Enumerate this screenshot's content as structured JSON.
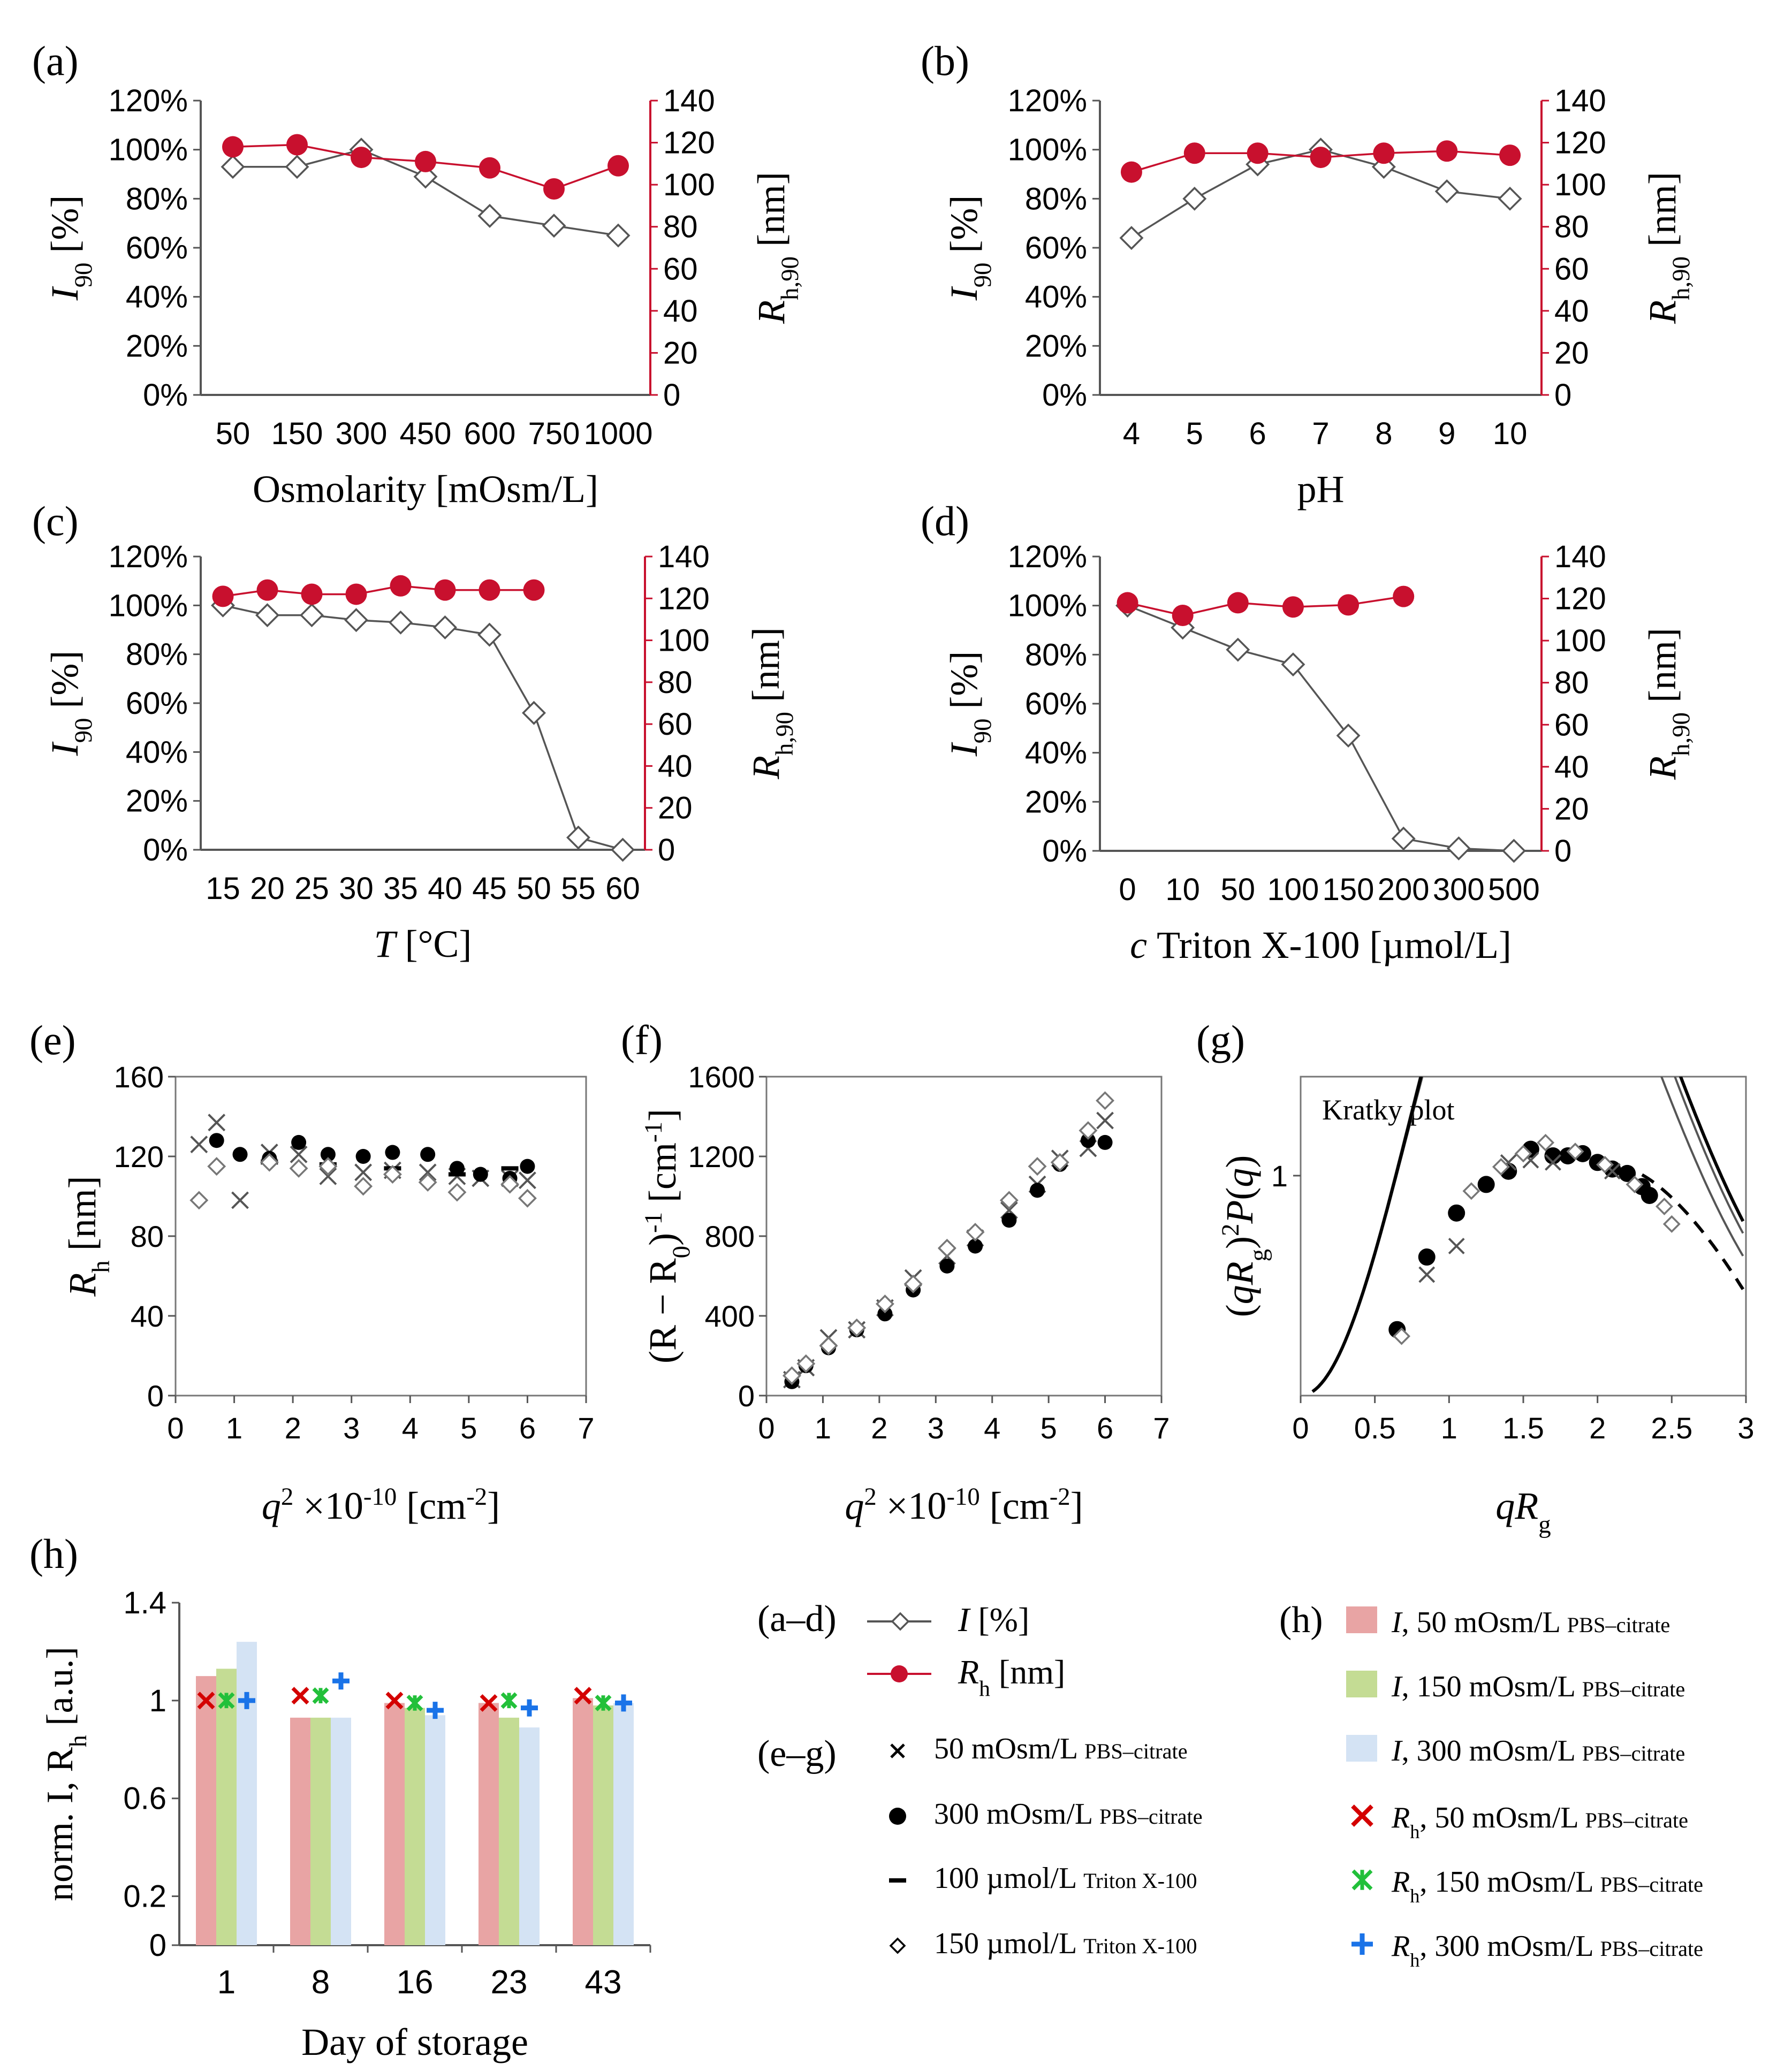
{
  "colors": {
    "red": "#c8102e",
    "marker_open": "#555555",
    "line": "#555555",
    "bar_pink": "#e8a4a4",
    "bar_green": "#c4dc94",
    "bar_blue": "#d4e3f4",
    "cross_red": "#d40000",
    "cross_green": "#22c03a",
    "plus_blue": "#1a73e8"
  },
  "chart_data": [
    {
      "id": "a",
      "panel_label": "(a)",
      "type": "line",
      "xlabel": "Osmolarity [mOsm/L]",
      "categories": [
        "50",
        "150",
        "300",
        "450",
        "600",
        "750",
        "1000"
      ],
      "y_ticks": [
        "0%",
        "20%",
        "40%",
        "60%",
        "80%",
        "100%",
        "120%"
      ],
      "y2_ticks": [
        "0",
        "20",
        "40",
        "60",
        "80",
        "100",
        "120",
        "140"
      ],
      "ylabel": "I",
      "ylabel_sub": "90",
      "ylabel_unit": "[%]",
      "y2label": "R",
      "y2label_sub": "h,90",
      "y2label_unit": "[nm]",
      "ylim": [
        0,
        120
      ],
      "y2lim": [
        0,
        140
      ],
      "series": [
        {
          "name": "I [%]",
          "values": [
            93,
            93,
            100,
            89,
            73,
            69,
            65
          ]
        },
        {
          "name": "Rh [nm]",
          "values": [
            118,
            119,
            113,
            111,
            108,
            98,
            109
          ]
        }
      ]
    },
    {
      "id": "b",
      "panel_label": "(b)",
      "type": "line",
      "xlabel": "pH",
      "categories": [
        "4",
        "5",
        "6",
        "7",
        "8",
        "9",
        "10"
      ],
      "y_ticks": [
        "0%",
        "20%",
        "40%",
        "60%",
        "80%",
        "100%",
        "120%"
      ],
      "y2_ticks": [
        "0",
        "20",
        "40",
        "60",
        "80",
        "100",
        "120",
        "140"
      ],
      "ylabel": "I",
      "ylabel_sub": "90",
      "ylabel_unit": "[%]",
      "y2label": "R",
      "y2label_sub": "h,90",
      "y2label_unit": "[nm]",
      "ylim": [
        0,
        120
      ],
      "y2lim": [
        0,
        140
      ],
      "series": [
        {
          "name": "I [%]",
          "values": [
            64,
            80,
            94,
            100,
            93,
            83,
            80
          ]
        },
        {
          "name": "Rh [nm]",
          "values": [
            106,
            115,
            115,
            113,
            115,
            116,
            114
          ]
        }
      ]
    },
    {
      "id": "c",
      "panel_label": "(c)",
      "type": "line",
      "xlabel": "T",
      "xlabel_unit": "[°C]",
      "categories": [
        "15",
        "20",
        "25",
        "30",
        "35",
        "40",
        "45",
        "50",
        "55",
        "60"
      ],
      "y_ticks": [
        "0%",
        "20%",
        "40%",
        "60%",
        "80%",
        "100%",
        "120%"
      ],
      "y2_ticks": [
        "0",
        "20",
        "40",
        "60",
        "80",
        "100",
        "120",
        "140"
      ],
      "ylabel": "I",
      "ylabel_sub": "90",
      "ylabel_unit": "[%]",
      "y2label": "R",
      "y2label_sub": "h,90",
      "y2label_unit": "[nm]",
      "ylim": [
        0,
        120
      ],
      "y2lim": [
        0,
        140
      ],
      "series": [
        {
          "name": "I [%]",
          "values": [
            100,
            96,
            96,
            94,
            93,
            91,
            88,
            56,
            5,
            0
          ]
        },
        {
          "name": "Rh [nm]",
          "values": [
            121,
            124,
            122,
            122,
            126,
            124,
            124,
            124,
            null,
            null
          ]
        }
      ]
    },
    {
      "id": "d",
      "panel_label": "(d)",
      "type": "line",
      "xlabel": "Triton X-100 [µmol/L]",
      "xlabel_c": "c",
      "categories": [
        "0",
        "10",
        "50",
        "100",
        "150",
        "200",
        "300",
        "500"
      ],
      "y_ticks": [
        "0%",
        "20%",
        "40%",
        "60%",
        "80%",
        "100%",
        "120%"
      ],
      "y2_ticks": [
        "0",
        "20",
        "40",
        "60",
        "80",
        "100",
        "120",
        "140"
      ],
      "ylabel": "I",
      "ylabel_sub": "90",
      "ylabel_unit": "[%]",
      "y2label": "R",
      "y2label_sub": "h,90",
      "y2label_unit": "[nm]",
      "ylim": [
        0,
        120
      ],
      "y2lim": [
        0,
        140
      ],
      "series": [
        {
          "name": "I [%]",
          "values": [
            100,
            91,
            82,
            76,
            47,
            5,
            1,
            0
          ]
        },
        {
          "name": "Rh [nm]",
          "values": [
            118,
            112,
            118,
            116,
            117,
            121,
            null,
            null
          ]
        }
      ]
    },
    {
      "id": "e",
      "panel_label": "(e)",
      "type": "scatter",
      "xlabel_unit": "[cm-2]",
      "ylabel": "R",
      "ylabel_sub": "h",
      "ylabel_unit": "[nm]",
      "x_ticks": [
        "0",
        "1",
        "2",
        "3",
        "4",
        "5",
        "6",
        "7"
      ],
      "y_ticks": [
        "0",
        "40",
        "80",
        "120",
        "160"
      ],
      "xlim": [
        0,
        7
      ],
      "ylim": [
        0,
        160
      ],
      "series": [
        {
          "name": "50 mOsm/L PBS–citrate",
          "marker": "x",
          "points": [
            [
              0.4,
              126
            ],
            [
              0.7,
              137
            ],
            [
              1.1,
              98
            ],
            [
              1.6,
              122
            ],
            [
              2.1,
              121
            ],
            [
              2.6,
              110
            ],
            [
              3.2,
              112
            ],
            [
              3.7,
              113
            ],
            [
              4.3,
              112
            ],
            [
              4.8,
              110
            ],
            [
              5.2,
              109
            ],
            [
              5.7,
              109
            ],
            [
              6.0,
              108
            ]
          ]
        },
        {
          "name": "300 mOsm/L PBS–citrate",
          "marker": "dot",
          "points": [
            [
              0.7,
              128
            ],
            [
              1.1,
              121
            ],
            [
              1.6,
              119
            ],
            [
              2.1,
              127
            ],
            [
              2.6,
              121
            ],
            [
              3.2,
              120
            ],
            [
              3.7,
              122
            ],
            [
              4.3,
              121
            ],
            [
              4.8,
              114
            ],
            [
              5.2,
              111
            ],
            [
              5.7,
              109
            ],
            [
              6.0,
              115
            ]
          ]
        },
        {
          "name": "100 µmol/L Triton X-100",
          "marker": "dash",
          "points": [
            [
              1.6,
              117
            ],
            [
              2.6,
              116
            ],
            [
              3.7,
              114
            ],
            [
              4.8,
              111
            ],
            [
              5.7,
              114
            ]
          ]
        },
        {
          "name": "150 µmol/L Triton X-100",
          "marker": "diamond",
          "points": [
            [
              0.4,
              98
            ],
            [
              0.7,
              115
            ],
            [
              1.6,
              117
            ],
            [
              2.1,
              114
            ],
            [
              2.6,
              115
            ],
            [
              3.2,
              105
            ],
            [
              3.7,
              111
            ],
            [
              4.3,
              107
            ],
            [
              4.8,
              102
            ],
            [
              5.7,
              106
            ],
            [
              6.0,
              99
            ]
          ]
        }
      ]
    },
    {
      "id": "f",
      "panel_label": "(f)",
      "type": "scatter",
      "ylabel": "(R − R",
      "ylabel_sub": "0",
      "ylabel_unit": ") -1 [cm-1]",
      "x_ticks": [
        "0",
        "1",
        "2",
        "3",
        "4",
        "5",
        "6",
        "7"
      ],
      "y_ticks": [
        "0",
        "400",
        "800",
        "1200",
        "1600"
      ],
      "xlim": [
        0,
        7
      ],
      "ylim": [
        0,
        1600
      ],
      "series": [
        {
          "name": "50 mOsm/L PBS–citrate",
          "marker": "x",
          "points": [
            [
              0.45,
              80
            ],
            [
              0.7,
              140
            ],
            [
              1.1,
              290
            ],
            [
              1.6,
              330
            ],
            [
              2.1,
              440
            ],
            [
              2.6,
              590
            ],
            [
              3.2,
              700
            ],
            [
              3.7,
              790
            ],
            [
              4.3,
              930
            ],
            [
              4.8,
              1060
            ],
            [
              5.2,
              1190
            ],
            [
              5.7,
              1240
            ],
            [
              6.0,
              1380
            ]
          ]
        },
        {
          "name": "300 mOsm/L PBS–citrate",
          "marker": "dot",
          "points": [
            [
              0.45,
              70
            ],
            [
              0.7,
              150
            ],
            [
              1.1,
              240
            ],
            [
              1.6,
              330
            ],
            [
              2.1,
              410
            ],
            [
              2.6,
              530
            ],
            [
              3.2,
              650
            ],
            [
              3.7,
              750
            ],
            [
              4.3,
              880
            ],
            [
              4.8,
              1030
            ],
            [
              5.2,
              1160
            ],
            [
              5.7,
              1280
            ],
            [
              6.0,
              1270
            ]
          ]
        },
        {
          "name": "150 µmol/L Triton X-100",
          "marker": "diamond",
          "points": [
            [
              0.45,
              100
            ],
            [
              0.7,
              160
            ],
            [
              1.1,
              250
            ],
            [
              1.6,
              340
            ],
            [
              2.1,
              460
            ],
            [
              2.6,
              560
            ],
            [
              3.2,
              740
            ],
            [
              3.7,
              820
            ],
            [
              4.3,
              980
            ],
            [
              4.8,
              1150
            ],
            [
              5.2,
              1170
            ],
            [
              5.7,
              1330
            ],
            [
              6.0,
              1480
            ]
          ]
        }
      ]
    },
    {
      "id": "g",
      "panel_label": "(g)",
      "type": "scatter",
      "annotation": "Kratky plot",
      "xlabel": "qR",
      "xlabel_sub": "g",
      "ylabel_expr": "(qR_g)^2 P(q)",
      "x_ticks": [
        "0",
        "0.5",
        "1",
        "1.5",
        "2",
        "2.5",
        "3"
      ],
      "y_ticks": [
        "1"
      ],
      "xlim": [
        0,
        3
      ],
      "ylim": [
        0,
        1.45
      ],
      "series": [
        {
          "name": "300 mOsm/L PBS–citrate",
          "marker": "dot",
          "points": [
            [
              0.65,
              0.3
            ],
            [
              0.85,
              0.63
            ],
            [
              1.05,
              0.83
            ],
            [
              1.25,
              0.96
            ],
            [
              1.4,
              1.02
            ],
            [
              1.55,
              1.12
            ],
            [
              1.7,
              1.09
            ],
            [
              1.8,
              1.09
            ],
            [
              1.9,
              1.1
            ],
            [
              2.0,
              1.06
            ],
            [
              2.1,
              1.03
            ],
            [
              2.2,
              1.01
            ],
            [
              2.3,
              0.95
            ],
            [
              2.35,
              0.91
            ]
          ]
        },
        {
          "name": "50 mOsm/L PBS–citrate",
          "marker": "x",
          "points": [
            [
              0.85,
              0.55
            ],
            [
              1.05,
              0.68
            ],
            [
              1.4,
              1.06
            ],
            [
              1.55,
              1.07
            ],
            [
              1.7,
              1.06
            ],
            [
              2.1,
              1.02
            ]
          ]
        },
        {
          "name": "150 µmol/L Triton X-100",
          "marker": "diamond",
          "points": [
            [
              0.68,
              0.27
            ],
            [
              1.15,
              0.93
            ],
            [
              1.35,
              1.04
            ],
            [
              1.5,
              1.1
            ],
            [
              1.65,
              1.15
            ],
            [
              1.85,
              1.11
            ],
            [
              2.05,
              1.05
            ],
            [
              2.25,
              0.96
            ],
            [
              2.45,
              0.86
            ],
            [
              2.5,
              0.78
            ]
          ]
        }
      ],
      "curves": [
        "model-1",
        "model-2",
        "model-3",
        "model-4"
      ]
    },
    {
      "id": "h",
      "panel_label": "(h)",
      "type": "bar",
      "xlabel": "Day of storage",
      "ylabel": "norm. I, R",
      "ylabel_sub": "h",
      "ylabel_unit": "[a.u.]",
      "categories": [
        "1",
        "8",
        "16",
        "23",
        "43"
      ],
      "y_ticks": [
        "0",
        "0.2",
        "0.6",
        "1",
        "1.4"
      ],
      "y_tick_values": [
        0,
        0.2,
        0.6,
        1,
        1.4
      ],
      "ylim": [
        0,
        1.4
      ],
      "bars": [
        {
          "name": "I, 50 mOsm/L PBS–citrate",
          "values": [
            1.1,
            0.93,
            0.99,
            0.99,
            1.01
          ]
        },
        {
          "name": "I, 150 mOsm/L PBS–citrate",
          "values": [
            1.13,
            0.93,
            0.97,
            0.93,
            0.98
          ]
        },
        {
          "name": "I, 300 mOsm/L PBS–citrate",
          "values": [
            1.24,
            0.93,
            0.94,
            0.89,
            0.99
          ]
        }
      ],
      "markers": [
        {
          "name": "Rh, 50 mOsm/L PBS–citrate",
          "values": [
            1.0,
            1.02,
            1.0,
            0.99,
            1.02
          ]
        },
        {
          "name": "Rh, 150 mOsm/L PBS–citrate",
          "values": [
            1.0,
            1.02,
            0.99,
            1.0,
            0.99
          ]
        },
        {
          "name": "Rh, 300 mOsm/L PBS–citrate",
          "values": [
            1.0,
            1.08,
            0.96,
            0.97,
            0.99
          ]
        }
      ]
    }
  ],
  "legend": {
    "ad_label": "(a–d)",
    "ad_I": "I [%]",
    "ad_R": "R",
    "ad_R_sub": "h",
    "ad_R_unit": "[nm]",
    "eg_label": "(e–g)",
    "eg_items": [
      {
        "main": "50 mOsm/L",
        "small": "PBS–citrate"
      },
      {
        "main": "300 mOsm/L",
        "small": "PBS–citrate"
      },
      {
        "main": "100 µmol/L",
        "small": "Triton X-100"
      },
      {
        "main": "150 µmol/L",
        "small": "Triton X-100"
      }
    ],
    "h_label": "(h)",
    "h_items": [
      {
        "sym": "I",
        "main": ", 50 mOsm/L",
        "small": "PBS–citrate"
      },
      {
        "sym": "I",
        "main": ", 150 mOsm/L",
        "small": "PBS–citrate"
      },
      {
        "sym": "I",
        "main": ", 300 mOsm/L",
        "small": "PBS–citrate"
      },
      {
        "sym": "R",
        "sub": "h",
        "main": ", 50 mOsm/L",
        "small": "PBS–citrate"
      },
      {
        "sym": "R",
        "sub": "h",
        "main": ", 150 mOsm/L",
        "small": "PBS–citrate"
      },
      {
        "sym": "R",
        "sub": "h",
        "main": ", 300 mOsm/L",
        "small": "PBS–citrate"
      }
    ]
  },
  "axis_text": {
    "q2": "q",
    "q2_sup": "2",
    "q2_rest": " ×10",
    "q2_exp": "-10",
    "q2_unit": " [cm",
    "q2_unit_exp": "-2",
    "q2_close": "]",
    "f_unit_close": "[cm",
    "f_unit_exp": "-1",
    "f_close": "]",
    "f_exp": "-1"
  }
}
